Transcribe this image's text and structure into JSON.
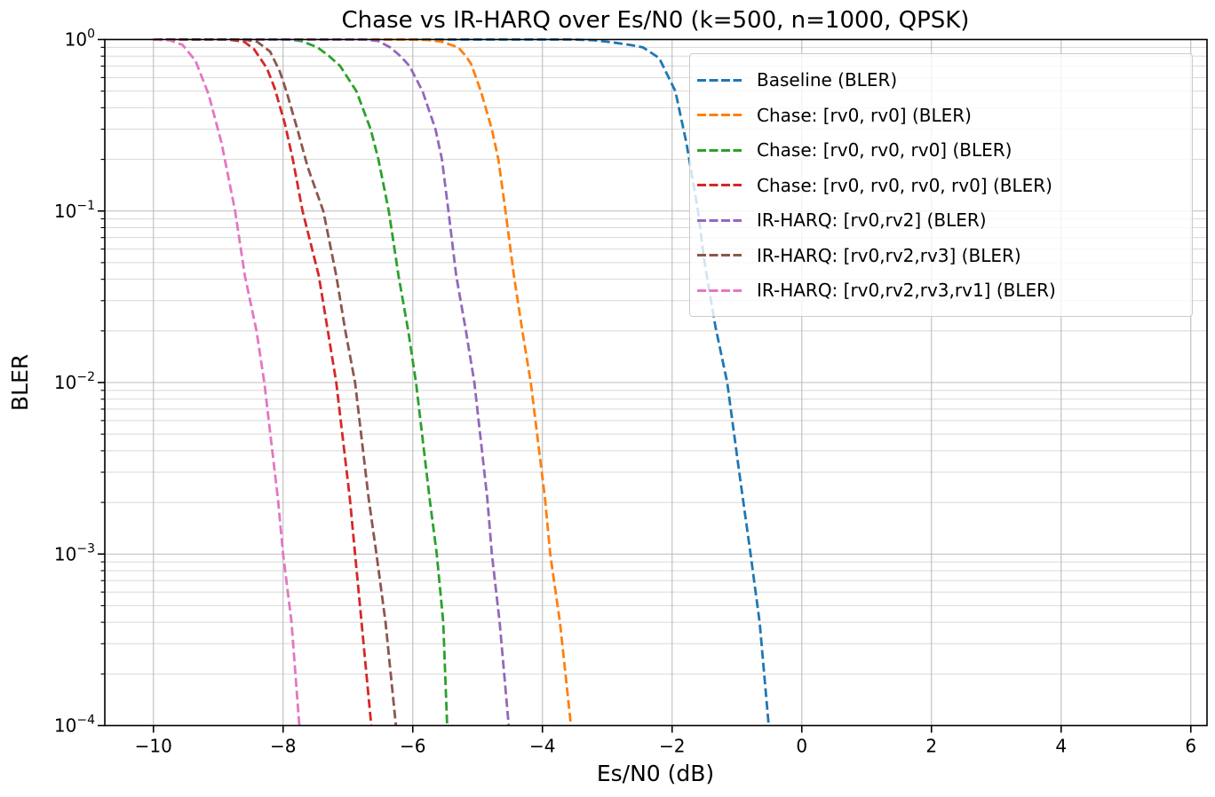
{
  "title": "Chase vs IR-HARQ over Es/N0 (k=500, n=1000, QPSK)",
  "axes": {
    "xlabel": "Es/N0 (dB)",
    "ylabel": "BLER",
    "x_tick_values": [
      -10,
      -8,
      -6,
      -4,
      -2,
      0,
      2,
      4,
      6
    ],
    "x_tick_labels": [
      "−10",
      "−8",
      "−6",
      "−4",
      "−2",
      "0",
      "2",
      "4",
      "6"
    ],
    "y_tick_base": "10",
    "y_tick_exponents": [
      "0",
      "−1",
      "−2",
      "−3",
      "−4"
    ]
  },
  "colors": {
    "background": "#ffffff",
    "spine": "#000000",
    "grid_major": "#bcbcbc",
    "grid_minor": "#d8d8d8",
    "legend_border": "#cccccc",
    "legend_background": "rgba(255,255,255,0.8)"
  },
  "chart_data": {
    "type": "line",
    "title": "Chase vs IR-HARQ over Es/N0 (k=500, n=1000, QPSK)",
    "xlabel": "Es/N0 (dB)",
    "ylabel": "BLER",
    "xlim": [
      -10.75,
      6.25
    ],
    "ylim": [
      0.0001,
      1.0
    ],
    "yscale": "log",
    "grid": true,
    "legend_position": "upper right",
    "line_style": "dashed",
    "series": [
      {
        "name": "Baseline (BLER)",
        "color": "#1f77b4",
        "points": [
          [
            -10,
            1
          ],
          [
            -3.55,
            1
          ],
          [
            -3.2,
            0.99
          ],
          [
            -2.9,
            0.96
          ],
          [
            -2.65,
            0.93
          ],
          [
            -2.45,
            0.9
          ],
          [
            -2.2,
            0.78
          ],
          [
            -1.95,
            0.5
          ],
          [
            -1.78,
            0.25
          ],
          [
            -1.6,
            0.1
          ],
          [
            -1.51,
            0.053
          ],
          [
            -1.33,
            0.021
          ],
          [
            -1.15,
            0.01
          ],
          [
            -0.97,
            0.0031
          ],
          [
            -0.79,
            0.001
          ],
          [
            -0.65,
            0.0004
          ],
          [
            -0.51,
            0.0001
          ]
        ]
      },
      {
        "name": "Chase: [rv0, rv0] (BLER)",
        "color": "#ff7f0e",
        "points": [
          [
            -10,
            1
          ],
          [
            -6.1,
            1
          ],
          [
            -5.78,
            0.995
          ],
          [
            -5.55,
            0.97
          ],
          [
            -5.3,
            0.9
          ],
          [
            -5.18,
            0.8
          ],
          [
            -5.1,
            0.72
          ],
          [
            -4.95,
            0.5
          ],
          [
            -4.78,
            0.3
          ],
          [
            -4.68,
            0.2
          ],
          [
            -4.57,
            0.1
          ],
          [
            -4.44,
            0.042
          ],
          [
            -4.31,
            0.02
          ],
          [
            -4.18,
            0.01
          ],
          [
            -3.96,
            0.0021
          ],
          [
            -3.88,
            0.001
          ],
          [
            -3.73,
            0.0004
          ],
          [
            -3.56,
            0.0001
          ]
        ]
      },
      {
        "name": "Chase: [rv0, rv0, rv0] (BLER)",
        "color": "#2ca02c",
        "points": [
          [
            -10,
            1
          ],
          [
            -7.9,
            1
          ],
          [
            -7.72,
            0.98
          ],
          [
            -7.47,
            0.9
          ],
          [
            -7.29,
            0.8
          ],
          [
            -7.12,
            0.7
          ],
          [
            -6.87,
            0.5
          ],
          [
            -6.65,
            0.3
          ],
          [
            -6.53,
            0.2
          ],
          [
            -6.37,
            0.1
          ],
          [
            -6.22,
            0.042
          ],
          [
            -6.07,
            0.02
          ],
          [
            -5.95,
            0.01
          ],
          [
            -5.74,
            0.0021
          ],
          [
            -5.63,
            0.001
          ],
          [
            -5.53,
            0.0004
          ],
          [
            -5.47,
            0.0001
          ]
        ]
      },
      {
        "name": "Chase: [rv0, rv0, rv0, rv0] (BLER)",
        "color": "#d62728",
        "points": [
          [
            -10,
            1
          ],
          [
            -8.85,
            1
          ],
          [
            -8.6,
            0.97
          ],
          [
            -8.45,
            0.88
          ],
          [
            -8.25,
            0.68
          ],
          [
            -8.13,
            0.52
          ],
          [
            -7.97,
            0.32
          ],
          [
            -7.85,
            0.2
          ],
          [
            -7.7,
            0.1
          ],
          [
            -7.45,
            0.042
          ],
          [
            -7.31,
            0.02
          ],
          [
            -7.18,
            0.01
          ],
          [
            -6.97,
            0.0021
          ],
          [
            -6.89,
            0.001
          ],
          [
            -6.79,
            0.0004
          ],
          [
            -6.64,
            0.0001
          ]
        ]
      },
      {
        "name": "IR-HARQ: [rv0,rv2] (BLER)",
        "color": "#9467bd",
        "points": [
          [
            -10,
            1
          ],
          [
            -6.75,
            1
          ],
          [
            -6.53,
            0.98
          ],
          [
            -6.35,
            0.9
          ],
          [
            -6.19,
            0.8
          ],
          [
            -6.05,
            0.7
          ],
          [
            -5.85,
            0.5
          ],
          [
            -5.65,
            0.3
          ],
          [
            -5.55,
            0.2
          ],
          [
            -5.45,
            0.1
          ],
          [
            -5.33,
            0.042
          ],
          [
            -5.18,
            0.02
          ],
          [
            -5.05,
            0.01
          ],
          [
            -4.85,
            0.0021
          ],
          [
            -4.78,
            0.001
          ],
          [
            -4.66,
            0.0004
          ],
          [
            -4.52,
            0.0001
          ]
        ]
      },
      {
        "name": "IR-HARQ: [rv0,rv2,rv3] (BLER)",
        "color": "#8c564b",
        "points": [
          [
            -10,
            1
          ],
          [
            -8.62,
            1
          ],
          [
            -8.4,
            0.97
          ],
          [
            -8.2,
            0.85
          ],
          [
            -8.05,
            0.65
          ],
          [
            -7.95,
            0.5
          ],
          [
            -7.78,
            0.3
          ],
          [
            -7.62,
            0.18
          ],
          [
            -7.38,
            0.1
          ],
          [
            -7.18,
            0.042
          ],
          [
            -7.04,
            0.02
          ],
          [
            -6.89,
            0.01
          ],
          [
            -6.68,
            0.0021
          ],
          [
            -6.56,
            0.001
          ],
          [
            -6.42,
            0.0004
          ],
          [
            -6.26,
            0.0001
          ]
        ]
      },
      {
        "name": "IR-HARQ: [rv0,rv2,rv3,rv1] (BLER)",
        "color": "#e377c2",
        "points": [
          [
            -10,
            1
          ],
          [
            -9.75,
            0.99
          ],
          [
            -9.55,
            0.93
          ],
          [
            -9.35,
            0.75
          ],
          [
            -9.15,
            0.48
          ],
          [
            -8.95,
            0.25
          ],
          [
            -8.74,
            0.1
          ],
          [
            -8.59,
            0.042
          ],
          [
            -8.41,
            0.02
          ],
          [
            -8.29,
            0.01
          ],
          [
            -8.08,
            0.0021
          ],
          [
            -8.0,
            0.001
          ],
          [
            -7.87,
            0.0004
          ],
          [
            -7.75,
            0.0001
          ]
        ]
      }
    ]
  }
}
